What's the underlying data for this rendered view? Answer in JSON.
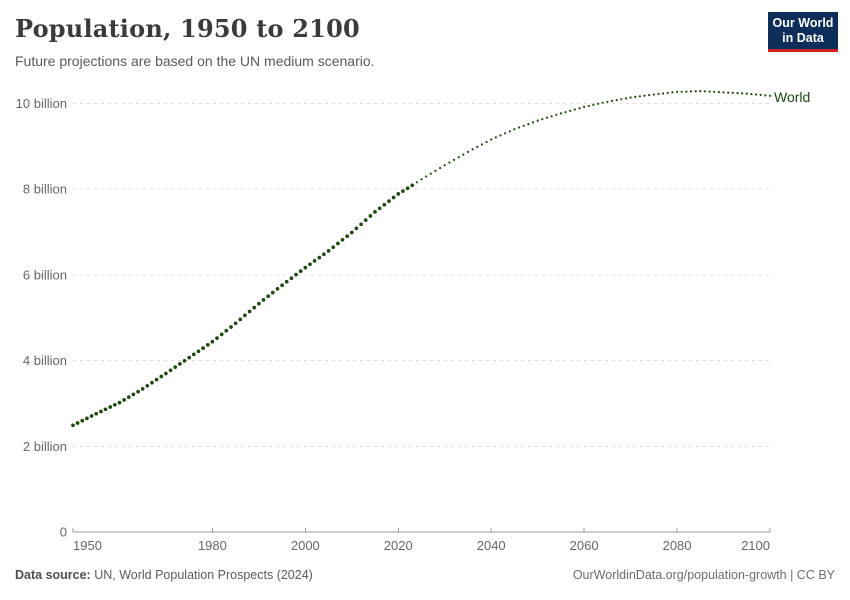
{
  "header": {
    "title": "Population, 1950 to 2100",
    "subtitle": "Future projections are based on the UN medium scenario.",
    "logo": {
      "line1": "Our World",
      "line2": "in Data"
    }
  },
  "footer": {
    "source_label": "Data source:",
    "source_text": " UN, World Population Prospects (2024)",
    "credit": "OurWorldinData.org/population-growth | CC BY"
  },
  "colors": {
    "series_green": "#1d4a0f",
    "logo_navy": "#0d2e5b",
    "logo_red": "#cb2026",
    "gridline": "#dcdcdc",
    "axis": "#999999",
    "tick_text": "#666666"
  },
  "chart_data": {
    "type": "line",
    "title": "Population, 1950 to 2100",
    "subtitle": "Future projections are based on the UN medium scenario.",
    "series_label": "World",
    "x_range": [
      1950,
      2100
    ],
    "y_range_billions": [
      0,
      10
    ],
    "xticks": [
      1950,
      1980,
      2000,
      2020,
      2040,
      2060,
      2080,
      2100
    ],
    "yticks": [
      {
        "value": 0,
        "label": "0"
      },
      {
        "value": 2,
        "label": "2 billion"
      },
      {
        "value": 4,
        "label": "4 billion"
      },
      {
        "value": 6,
        "label": "6 billion"
      },
      {
        "value": 8,
        "label": "8 billion"
      },
      {
        "value": 10,
        "label": "10 billion"
      }
    ],
    "projection_start_year": 2023,
    "style": {
      "historical": "dense dots (solid look)",
      "projection": "dotted",
      "grid": "dashed horizontal"
    },
    "points_year_billions": [
      [
        1950,
        2.49
      ],
      [
        1955,
        2.76
      ],
      [
        1960,
        3.02
      ],
      [
        1965,
        3.34
      ],
      [
        1970,
        3.7
      ],
      [
        1975,
        4.07
      ],
      [
        1980,
        4.44
      ],
      [
        1985,
        4.87
      ],
      [
        1990,
        5.33
      ],
      [
        1995,
        5.76
      ],
      [
        2000,
        6.17
      ],
      [
        2005,
        6.56
      ],
      [
        2010,
        6.99
      ],
      [
        2015,
        7.47
      ],
      [
        2020,
        7.89
      ],
      [
        2023,
        8.09
      ],
      [
        2025,
        8.23
      ],
      [
        2030,
        8.56
      ],
      [
        2035,
        8.87
      ],
      [
        2040,
        9.16
      ],
      [
        2045,
        9.4
      ],
      [
        2050,
        9.6
      ],
      [
        2055,
        9.77
      ],
      [
        2060,
        9.92
      ],
      [
        2065,
        10.04
      ],
      [
        2070,
        10.14
      ],
      [
        2075,
        10.21
      ],
      [
        2080,
        10.27
      ],
      [
        2085,
        10.29
      ],
      [
        2090,
        10.26
      ],
      [
        2095,
        10.23
      ],
      [
        2100,
        10.18
      ]
    ]
  }
}
